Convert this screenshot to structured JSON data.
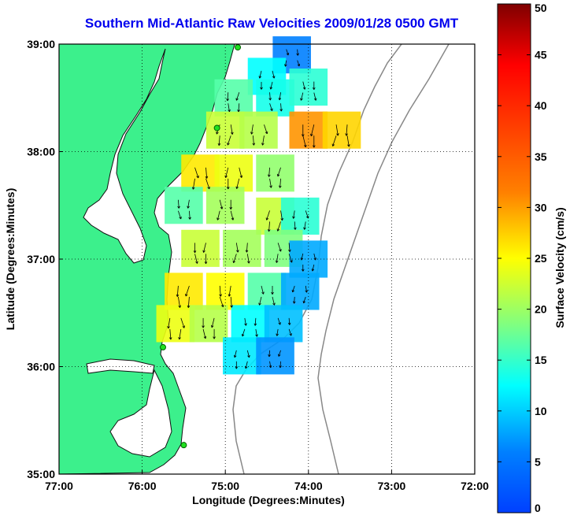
{
  "title": "Southern Mid-Atlantic Raw Velocities 2009/01/28 0500 GMT",
  "chart_data": {
    "type": "heatmap",
    "xlabel": "Longitude (Degrees:Minutes)",
    "ylabel": "Latitude (Degrees:Minutes)",
    "xlim": [
      -77,
      -72
    ],
    "ylim": [
      35,
      39
    ],
    "x_ticks": [
      {
        "value": -77,
        "label": "77:00"
      },
      {
        "value": -76,
        "label": "76:00"
      },
      {
        "value": -75,
        "label": "75:00"
      },
      {
        "value": -74,
        "label": "74:00"
      },
      {
        "value": -73,
        "label": "73:00"
      },
      {
        "value": -72,
        "label": "72:00"
      }
    ],
    "y_ticks": [
      {
        "value": 35,
        "label": "35:00"
      },
      {
        "value": 36,
        "label": "36:00"
      },
      {
        "value": 37,
        "label": "37:00"
      },
      {
        "value": 38,
        "label": "38:00"
      },
      {
        "value": 39,
        "label": "39:00"
      }
    ],
    "grid": true,
    "colorbar": {
      "label": "Surface Velocity (cm/s)",
      "min": 0,
      "max": 50,
      "ticks": [
        {
          "value": 0,
          "label": "0"
        },
        {
          "value": 5,
          "label": "5"
        },
        {
          "value": 10,
          "label": "10"
        },
        {
          "value": 15,
          "label": "15"
        },
        {
          "value": 20,
          "label": "20"
        },
        {
          "value": 25,
          "label": "25"
        },
        {
          "value": 30,
          "label": "30"
        },
        {
          "value": 35,
          "label": "35"
        },
        {
          "value": 40,
          "label": "40"
        },
        {
          "value": 45,
          "label": "45"
        },
        {
          "value": 50,
          "label": "50"
        }
      ]
    },
    "velocity_field": [
      {
        "lon": -74.2,
        "lat": 38.9,
        "speed": 6
      },
      {
        "lon": -74.5,
        "lat": 38.7,
        "speed": 12
      },
      {
        "lon": -74.9,
        "lat": 38.5,
        "speed": 16
      },
      {
        "lon": -74.4,
        "lat": 38.5,
        "speed": 13
      },
      {
        "lon": -74.0,
        "lat": 38.6,
        "speed": 14
      },
      {
        "lon": -75.0,
        "lat": 38.2,
        "speed": 22
      },
      {
        "lon": -74.6,
        "lat": 38.2,
        "speed": 21
      },
      {
        "lon": -74.0,
        "lat": 38.2,
        "speed": 30
      },
      {
        "lon": -73.6,
        "lat": 38.2,
        "speed": 27
      },
      {
        "lon": -75.3,
        "lat": 37.8,
        "speed": 26
      },
      {
        "lon": -74.9,
        "lat": 37.8,
        "speed": 24
      },
      {
        "lon": -74.4,
        "lat": 37.8,
        "speed": 19
      },
      {
        "lon": -75.5,
        "lat": 37.5,
        "speed": 16
      },
      {
        "lon": -75.0,
        "lat": 37.5,
        "speed": 20
      },
      {
        "lon": -74.4,
        "lat": 37.4,
        "speed": 22
      },
      {
        "lon": -74.1,
        "lat": 37.4,
        "speed": 14
      },
      {
        "lon": -75.3,
        "lat": 37.1,
        "speed": 22
      },
      {
        "lon": -74.8,
        "lat": 37.1,
        "speed": 20
      },
      {
        "lon": -74.3,
        "lat": 37.1,
        "speed": 18
      },
      {
        "lon": -74.0,
        "lat": 37.0,
        "speed": 8
      },
      {
        "lon": -75.5,
        "lat": 36.7,
        "speed": 26
      },
      {
        "lon": -75.0,
        "lat": 36.7,
        "speed": 25
      },
      {
        "lon": -74.5,
        "lat": 36.7,
        "speed": 16
      },
      {
        "lon": -74.1,
        "lat": 36.7,
        "speed": 8
      },
      {
        "lon": -75.6,
        "lat": 36.4,
        "speed": 24
      },
      {
        "lon": -75.2,
        "lat": 36.4,
        "speed": 21
      },
      {
        "lon": -74.7,
        "lat": 36.4,
        "speed": 12
      },
      {
        "lon": -74.3,
        "lat": 36.4,
        "speed": 9
      },
      {
        "lon": -74.8,
        "lat": 36.1,
        "speed": 11
      },
      {
        "lon": -74.4,
        "lat": 36.1,
        "speed": 7
      }
    ],
    "stations": [
      {
        "lon": -74.85,
        "lat": 38.97
      },
      {
        "lon": -75.1,
        "lat": 38.22
      },
      {
        "lon": -75.75,
        "lat": 36.18
      },
      {
        "lon": -75.5,
        "lat": 35.27
      }
    ]
  }
}
